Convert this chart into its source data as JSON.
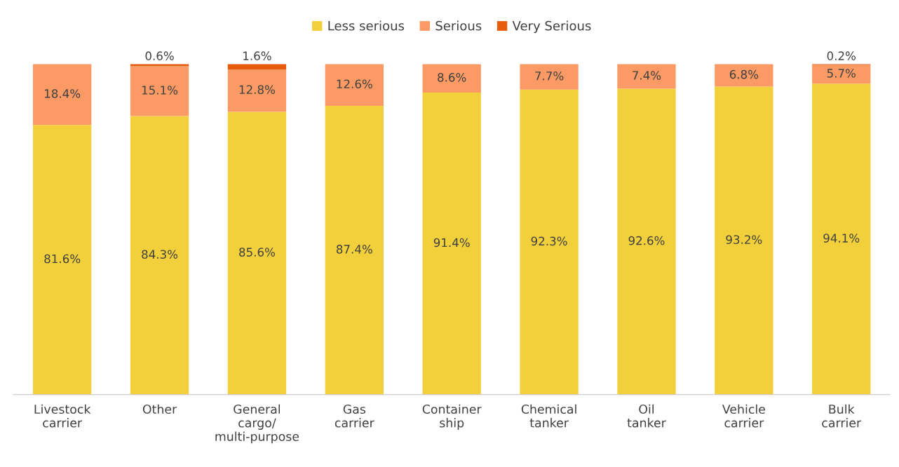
{
  "chart_data": {
    "type": "bar",
    "stacked": true,
    "legend": "top",
    "grid": false,
    "categories": [
      "Livestock\ncarrier",
      "Other",
      "General\ncargo/\nmulti-purpose",
      "Gas\ncarrier",
      "Container\nship",
      "Chemical\ntanker",
      "Oil\ntanker",
      "Vehicle\ncarrier",
      "Bulk\ncarrier"
    ],
    "series": [
      {
        "name": "Less serious",
        "color": "#f2d03b",
        "values": [
          81.6,
          84.3,
          85.6,
          87.4,
          91.4,
          92.3,
          92.6,
          93.2,
          94.1
        ],
        "value_labels": [
          "81.6%",
          "84.3%",
          "85.6%",
          "87.4%",
          "91.4%",
          "92.3%",
          "92.6%",
          "93.2%",
          "94.1%"
        ]
      },
      {
        "name": "Serious",
        "color": "#fb9a64",
        "values": [
          18.4,
          15.1,
          12.8,
          12.6,
          8.6,
          7.7,
          7.4,
          6.8,
          5.7
        ],
        "value_labels": [
          "18.4%",
          "15.1%",
          "12.8%",
          "12.6%",
          "8.6%",
          "7.7%",
          "7.4%",
          "6.8%",
          "5.7%"
        ]
      },
      {
        "name": "Very Serious",
        "color": "#e65b0c",
        "values": [
          null,
          0.6,
          1.6,
          null,
          null,
          null,
          null,
          null,
          0.2
        ],
        "value_labels": [
          null,
          "0.6%",
          "1.6%",
          null,
          null,
          null,
          null,
          null,
          "0.2%"
        ]
      }
    ]
  }
}
